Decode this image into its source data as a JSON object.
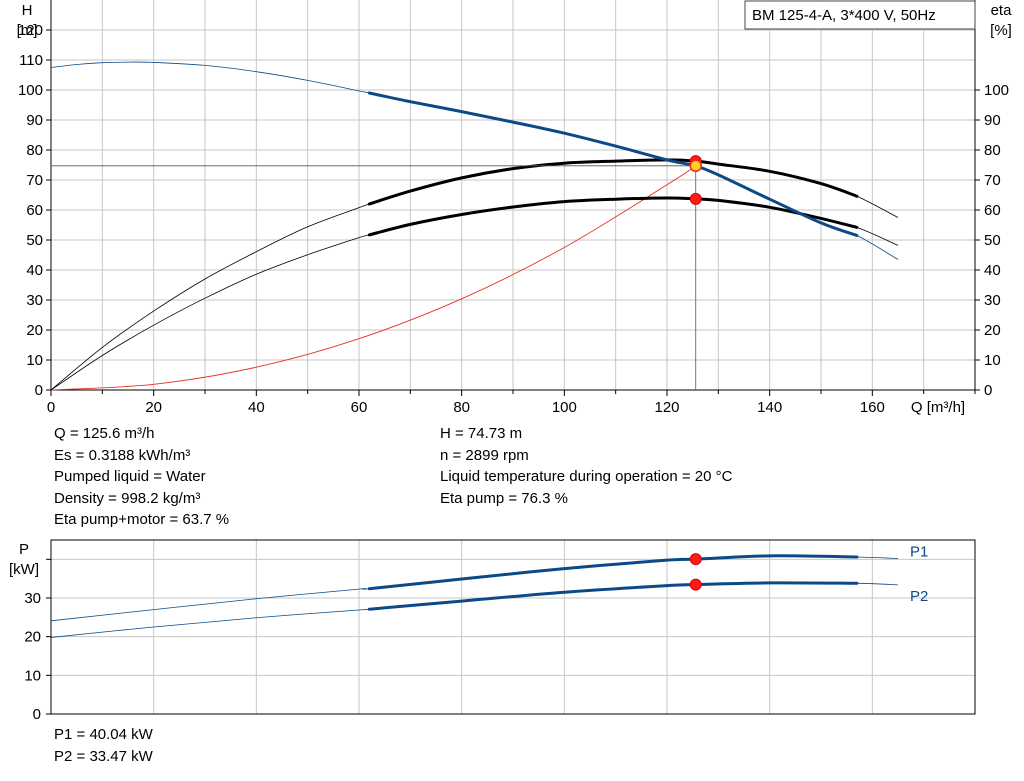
{
  "chart_data": [
    {
      "type": "line",
      "title": "BM 125-4-A, 3*400 V, 50Hz",
      "xlabel": "Q [m³/h]",
      "ylabel": [
        "H",
        "[m]"
      ],
      "y2label": [
        "eta",
        "[%]"
      ],
      "xlim": [
        0,
        180
      ],
      "ylim": [
        0,
        130
      ],
      "y2lim": [
        0,
        130
      ],
      "xticks": [
        0,
        20,
        40,
        60,
        80,
        100,
        120,
        140,
        160
      ],
      "yticks": [
        0,
        10,
        20,
        30,
        40,
        50,
        60,
        70,
        80,
        90,
        100,
        110,
        120
      ],
      "y2ticks": [
        0,
        10,
        20,
        30,
        40,
        50,
        60,
        70,
        80,
        90,
        100
      ],
      "grid": true,
      "operating_point": {
        "x": 125.6,
        "y": 74.73
      },
      "series": [
        {
          "name": "H",
          "color": "#0b4a86",
          "axis": "left",
          "x": [
            0,
            5,
            10,
            15,
            20,
            30,
            40,
            50,
            60,
            62,
            70,
            80,
            90,
            100,
            110,
            120,
            125.6,
            130,
            140,
            150,
            157,
            165
          ],
          "y": [
            107.5,
            108.5,
            109.1,
            109.3,
            109.2,
            108.2,
            106.1,
            103.2,
            99.7,
            99,
            96.1,
            92.8,
            89.3,
            85.6,
            81.3,
            76.7,
            74.7,
            71.7,
            63.6,
            55.7,
            51.5,
            43.5
          ],
          "bold_from": 62,
          "bold_to": 157
        },
        {
          "name": "Eta pump",
          "color": "#000000",
          "axis": "right",
          "x": [
            0,
            10,
            20,
            30,
            40,
            50,
            60,
            62,
            70,
            80,
            90,
            100,
            110,
            120,
            125.6,
            130,
            140,
            150,
            157,
            165
          ],
          "y": [
            0,
            14.2,
            26.3,
            37,
            46.1,
            54.4,
            60.8,
            62,
            66.3,
            70.7,
            73.8,
            75.6,
            76.3,
            76.7,
            76.3,
            75.3,
            72.9,
            68.8,
            64.6,
            57.5
          ],
          "bold_from": 62,
          "bold_to": 157
        },
        {
          "name": "Eta pump+motor",
          "color": "#000000",
          "axis": "right",
          "x": [
            0,
            10,
            20,
            30,
            40,
            50,
            60,
            62,
            70,
            80,
            90,
            100,
            110,
            120,
            125.6,
            130,
            140,
            150,
            157,
            165
          ],
          "y": [
            0,
            11.5,
            21.6,
            30.6,
            38.6,
            45.1,
            50.8,
            51.7,
            55.2,
            58.5,
            61,
            62.8,
            63.6,
            64,
            63.7,
            63.2,
            60.9,
            57.2,
            54.2,
            48.2
          ],
          "bold_from": 62,
          "bold_to": 157
        },
        {
          "name": "System curve",
          "color": "#e53122",
          "axis": "left",
          "x": [
            0,
            20,
            40,
            60,
            80,
            100,
            120,
            125.6
          ],
          "y": [
            0,
            1.9,
            7.6,
            17.1,
            30.4,
            47.5,
            68.4,
            74.7
          ]
        }
      ],
      "points": [
        {
          "x": 125.6,
          "y": 76.3,
          "axis": "right"
        },
        {
          "x": 125.6,
          "y": 63.7,
          "axis": "right"
        },
        {
          "x": 125.6,
          "y": 74.73,
          "axis": "left",
          "style": "yellow"
        }
      ]
    },
    {
      "type": "line",
      "xlim": [
        0,
        180
      ],
      "ylabel": [
        "P",
        "[kW]"
      ],
      "ylim": [
        0,
        45
      ],
      "yticks": [
        0,
        10,
        20,
        30
      ],
      "grid": true,
      "series": [
        {
          "name": "P1",
          "color": "#0b4a86",
          "x": [
            0,
            20,
            40,
            60,
            62,
            80,
            100,
            120,
            125.6,
            140,
            157,
            165
          ],
          "y": [
            24.1,
            27,
            29.8,
            32.3,
            32.4,
            34.9,
            37.6,
            39.8,
            40.04,
            40.9,
            40.6,
            40.2
          ],
          "bold_from": 62,
          "bold_to": 157
        },
        {
          "name": "P2",
          "color": "#0b4a86",
          "x": [
            0,
            20,
            40,
            60,
            62,
            80,
            100,
            120,
            125.6,
            140,
            157,
            165
          ],
          "y": [
            19.8,
            22.5,
            24.9,
            26.9,
            27.1,
            29.2,
            31.5,
            33.2,
            33.47,
            33.9,
            33.8,
            33.4
          ],
          "bold_from": 62,
          "bold_to": 157
        }
      ],
      "points": [
        {
          "x": 125.6,
          "y": 40.04
        },
        {
          "x": 125.6,
          "y": 33.47
        }
      ]
    }
  ],
  "info": {
    "left": [
      "Q = 125.6 m³/h",
      "Es = 0.3188 kWh/m³",
      "Pumped liquid = Water",
      "Density = 998.2 kg/m³",
      "Eta pump+motor = 63.7 %"
    ],
    "right": [
      "H = 74.73 m",
      "n = 2899 rpm",
      "Liquid temperature during operation = 20 °C",
      "Eta pump = 76.3 %"
    ],
    "power": [
      "P1 = 40.04 kW",
      "P2 = 33.47 kW"
    ]
  }
}
